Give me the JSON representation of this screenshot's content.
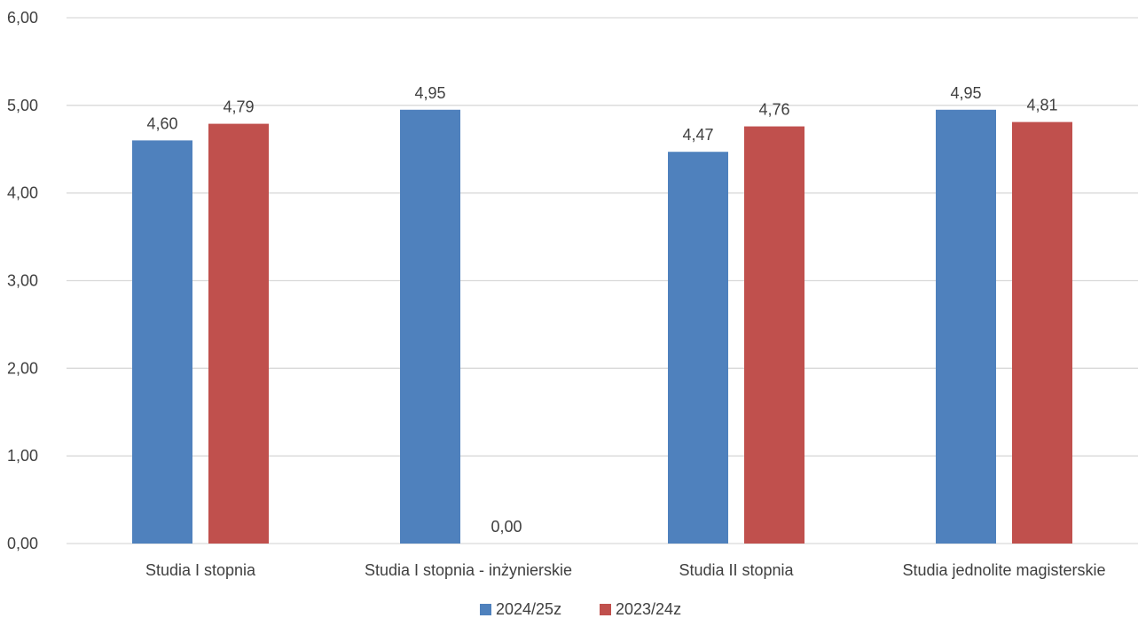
{
  "chart_data": {
    "type": "bar",
    "categories": [
      "Studia I stopnia",
      "Studia I stopnia - inżynierskie",
      "Studia II stopnia",
      "Studia jednolite magisterskie"
    ],
    "series": [
      {
        "name": "2024/25z",
        "color": "#4f81bd",
        "values": [
          4.6,
          4.95,
          4.47,
          4.95
        ],
        "labels": [
          "4,60",
          "4,95",
          "4,47",
          "4,95"
        ]
      },
      {
        "name": "2023/24z",
        "color": "#c0504d",
        "values": [
          4.79,
          0.0,
          4.76,
          4.81
        ],
        "labels": [
          "4,79",
          "0,00",
          "4,76",
          "4,81"
        ]
      }
    ],
    "ylim": [
      0,
      6
    ],
    "yticks": [
      0,
      1,
      2,
      3,
      4,
      5,
      6
    ],
    "ytick_labels": [
      "0,00",
      "1,00",
      "2,00",
      "3,00",
      "4,00",
      "5,00",
      "6,00"
    ],
    "grid": true,
    "legend_position": "bottom",
    "title": "",
    "xlabel": "",
    "ylabel": ""
  }
}
